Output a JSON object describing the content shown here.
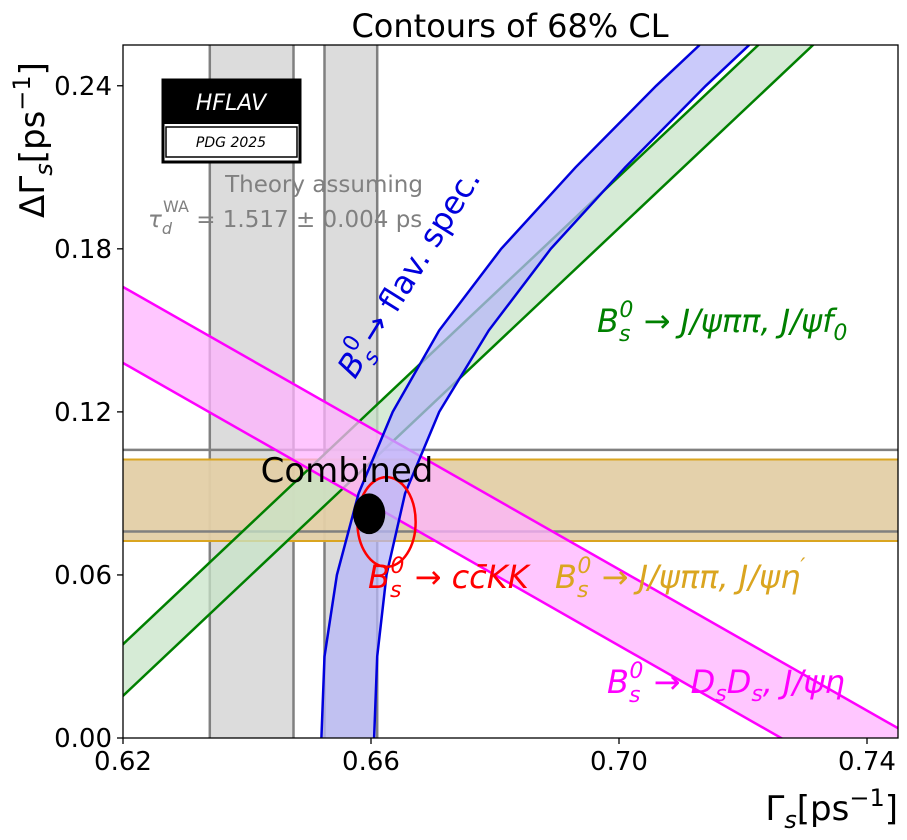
{
  "chart_data": {
    "type": "contour",
    "title": "Contours of 68% CL",
    "xlabel_main": "Γ",
    "xlabel_sub": "s",
    "xlabel_unit_open": "[ps",
    "xlabel_unit_exp": "−1",
    "xlabel_unit_close": "]",
    "ylabel_main": "ΔΓ",
    "ylabel_sub": "s",
    "ylabel_unit_open": "[ps",
    "ylabel_unit_exp": "−1",
    "ylabel_unit_close": "]",
    "xlim": [
      0.62,
      0.745
    ],
    "ylim": [
      0.0,
      0.255
    ],
    "x_ticks": [
      "0.62",
      "0.66",
      "0.70",
      "0.74"
    ],
    "x_tick_values": [
      0.62,
      0.66,
      0.7,
      0.74
    ],
    "y_ticks": [
      "0.00",
      "0.06",
      "0.12",
      "0.18",
      "0.24"
    ],
    "y_tick_values": [
      0.0,
      0.06,
      0.12,
      0.18,
      0.24
    ],
    "grid": false,
    "logo": {
      "top": "HFLAV",
      "bottom": "PDG 2025"
    },
    "theory_note": {
      "line1": "Theory assuming",
      "tau": "τ",
      "tau_sub": "d",
      "tau_sup": "WA",
      "value": " = 1.517 ± 0.004 ps",
      "color": "#808080"
    },
    "theory_bands": [
      {
        "x_range": [
          0.634,
          0.6475
        ],
        "color": "#dcdcdc",
        "edge": "#808080"
      },
      {
        "x_range": [
          0.6525,
          0.661
        ],
        "color": "#dcdcdc",
        "edge": "#808080"
      }
    ],
    "constraints": [
      {
        "label": "B_s^0 → cc̄KK",
        "color": "#ff0000",
        "type": "ellipse",
        "center": [
          0.6625,
          0.0795
        ],
        "semi_axes": [
          0.0047,
          0.0165
        ]
      },
      {
        "label": "B_s^0 → J/ψππ, J/ψη′",
        "color": "#daa520",
        "fill": "#e3cfa6",
        "type": "y_band",
        "y_range": [
          0.0725,
          0.1025
        ]
      },
      {
        "label": "B_s^0 → J/ψππ, J/ψf_0",
        "color": "#008000",
        "fill": "#c8e4c8",
        "type": "line_band",
        "lower_line": [
          [
            0.62,
            0.0155
          ],
          [
            0.745,
            0.2845
          ]
        ],
        "upper_line": [
          [
            0.62,
            0.0345
          ],
          [
            0.745,
            0.3035
          ]
        ]
      },
      {
        "label": "B_s^0 → D_sD_s, J/ψη",
        "color": "#ff00ff",
        "fill": "#ffb3ff",
        "type": "line_band",
        "lower_line": [
          [
            0.62,
            0.138
          ],
          [
            0.745,
            -0.0245
          ]
        ],
        "upper_line": [
          [
            0.62,
            0.166
          ],
          [
            0.745,
            0.0036
          ]
        ]
      },
      {
        "label": "B_s^0 → flav. spec.",
        "color": "#0000dd",
        "fill": "#b8b8f8",
        "type": "parabola_band",
        "vertex_y": 0.0,
        "inner_vertex_x": 0.652,
        "outer_vertex_x": 0.6605,
        "inner_curve": [
          [
            0.652,
            0.0
          ],
          [
            0.6525,
            0.03
          ],
          [
            0.6545,
            0.06
          ],
          [
            0.658,
            0.09
          ],
          [
            0.6635,
            0.12
          ],
          [
            0.671,
            0.15
          ],
          [
            0.681,
            0.18
          ],
          [
            0.693,
            0.21
          ],
          [
            0.706,
            0.24
          ],
          [
            0.713,
            0.255
          ]
        ],
        "outer_curve": [
          [
            0.6605,
            0.0
          ],
          [
            0.661,
            0.03
          ],
          [
            0.6625,
            0.06
          ],
          [
            0.6655,
            0.09
          ],
          [
            0.671,
            0.12
          ],
          [
            0.679,
            0.15
          ],
          [
            0.689,
            0.18
          ],
          [
            0.701,
            0.21
          ],
          [
            0.714,
            0.24
          ],
          [
            0.721,
            0.255
          ]
        ]
      },
      {
        "label": "Combined",
        "color": "#000000",
        "type": "ellipse_filled",
        "center": [
          0.6597,
          0.0825
        ],
        "semi_axes": [
          0.0026,
          0.0075
        ]
      }
    ],
    "combined_label": "Combined",
    "annotations": {
      "flav_prefix": "B",
      "flav_sub": "s",
      "flav_sup": "0",
      "flav_text": "→ flav. spec.",
      "f0_text_b": "B",
      "f0_sub": "s",
      "f0_sup": "0",
      "f0_text": " → J/ψππ, J/ψf",
      "f0_tail_sub": "0",
      "cckk_b": "B",
      "cckk_sub": "s",
      "cckk_sup": "0",
      "cckk_text": " → cc̄KK",
      "etap_b": "B",
      "etap_sub": "s",
      "etap_sup": "0",
      "etap_text": " → J/ψππ, J/ψη",
      "etap_prime": "′",
      "dsds_b": "B",
      "dsds_sub": "s",
      "dsds_sup": "0",
      "dsds_text": " → D",
      "dsds_sub1": "s",
      "dsds_text2": "D",
      "dsds_sub2": "s",
      "dsds_text3": ", J/ψη"
    }
  }
}
